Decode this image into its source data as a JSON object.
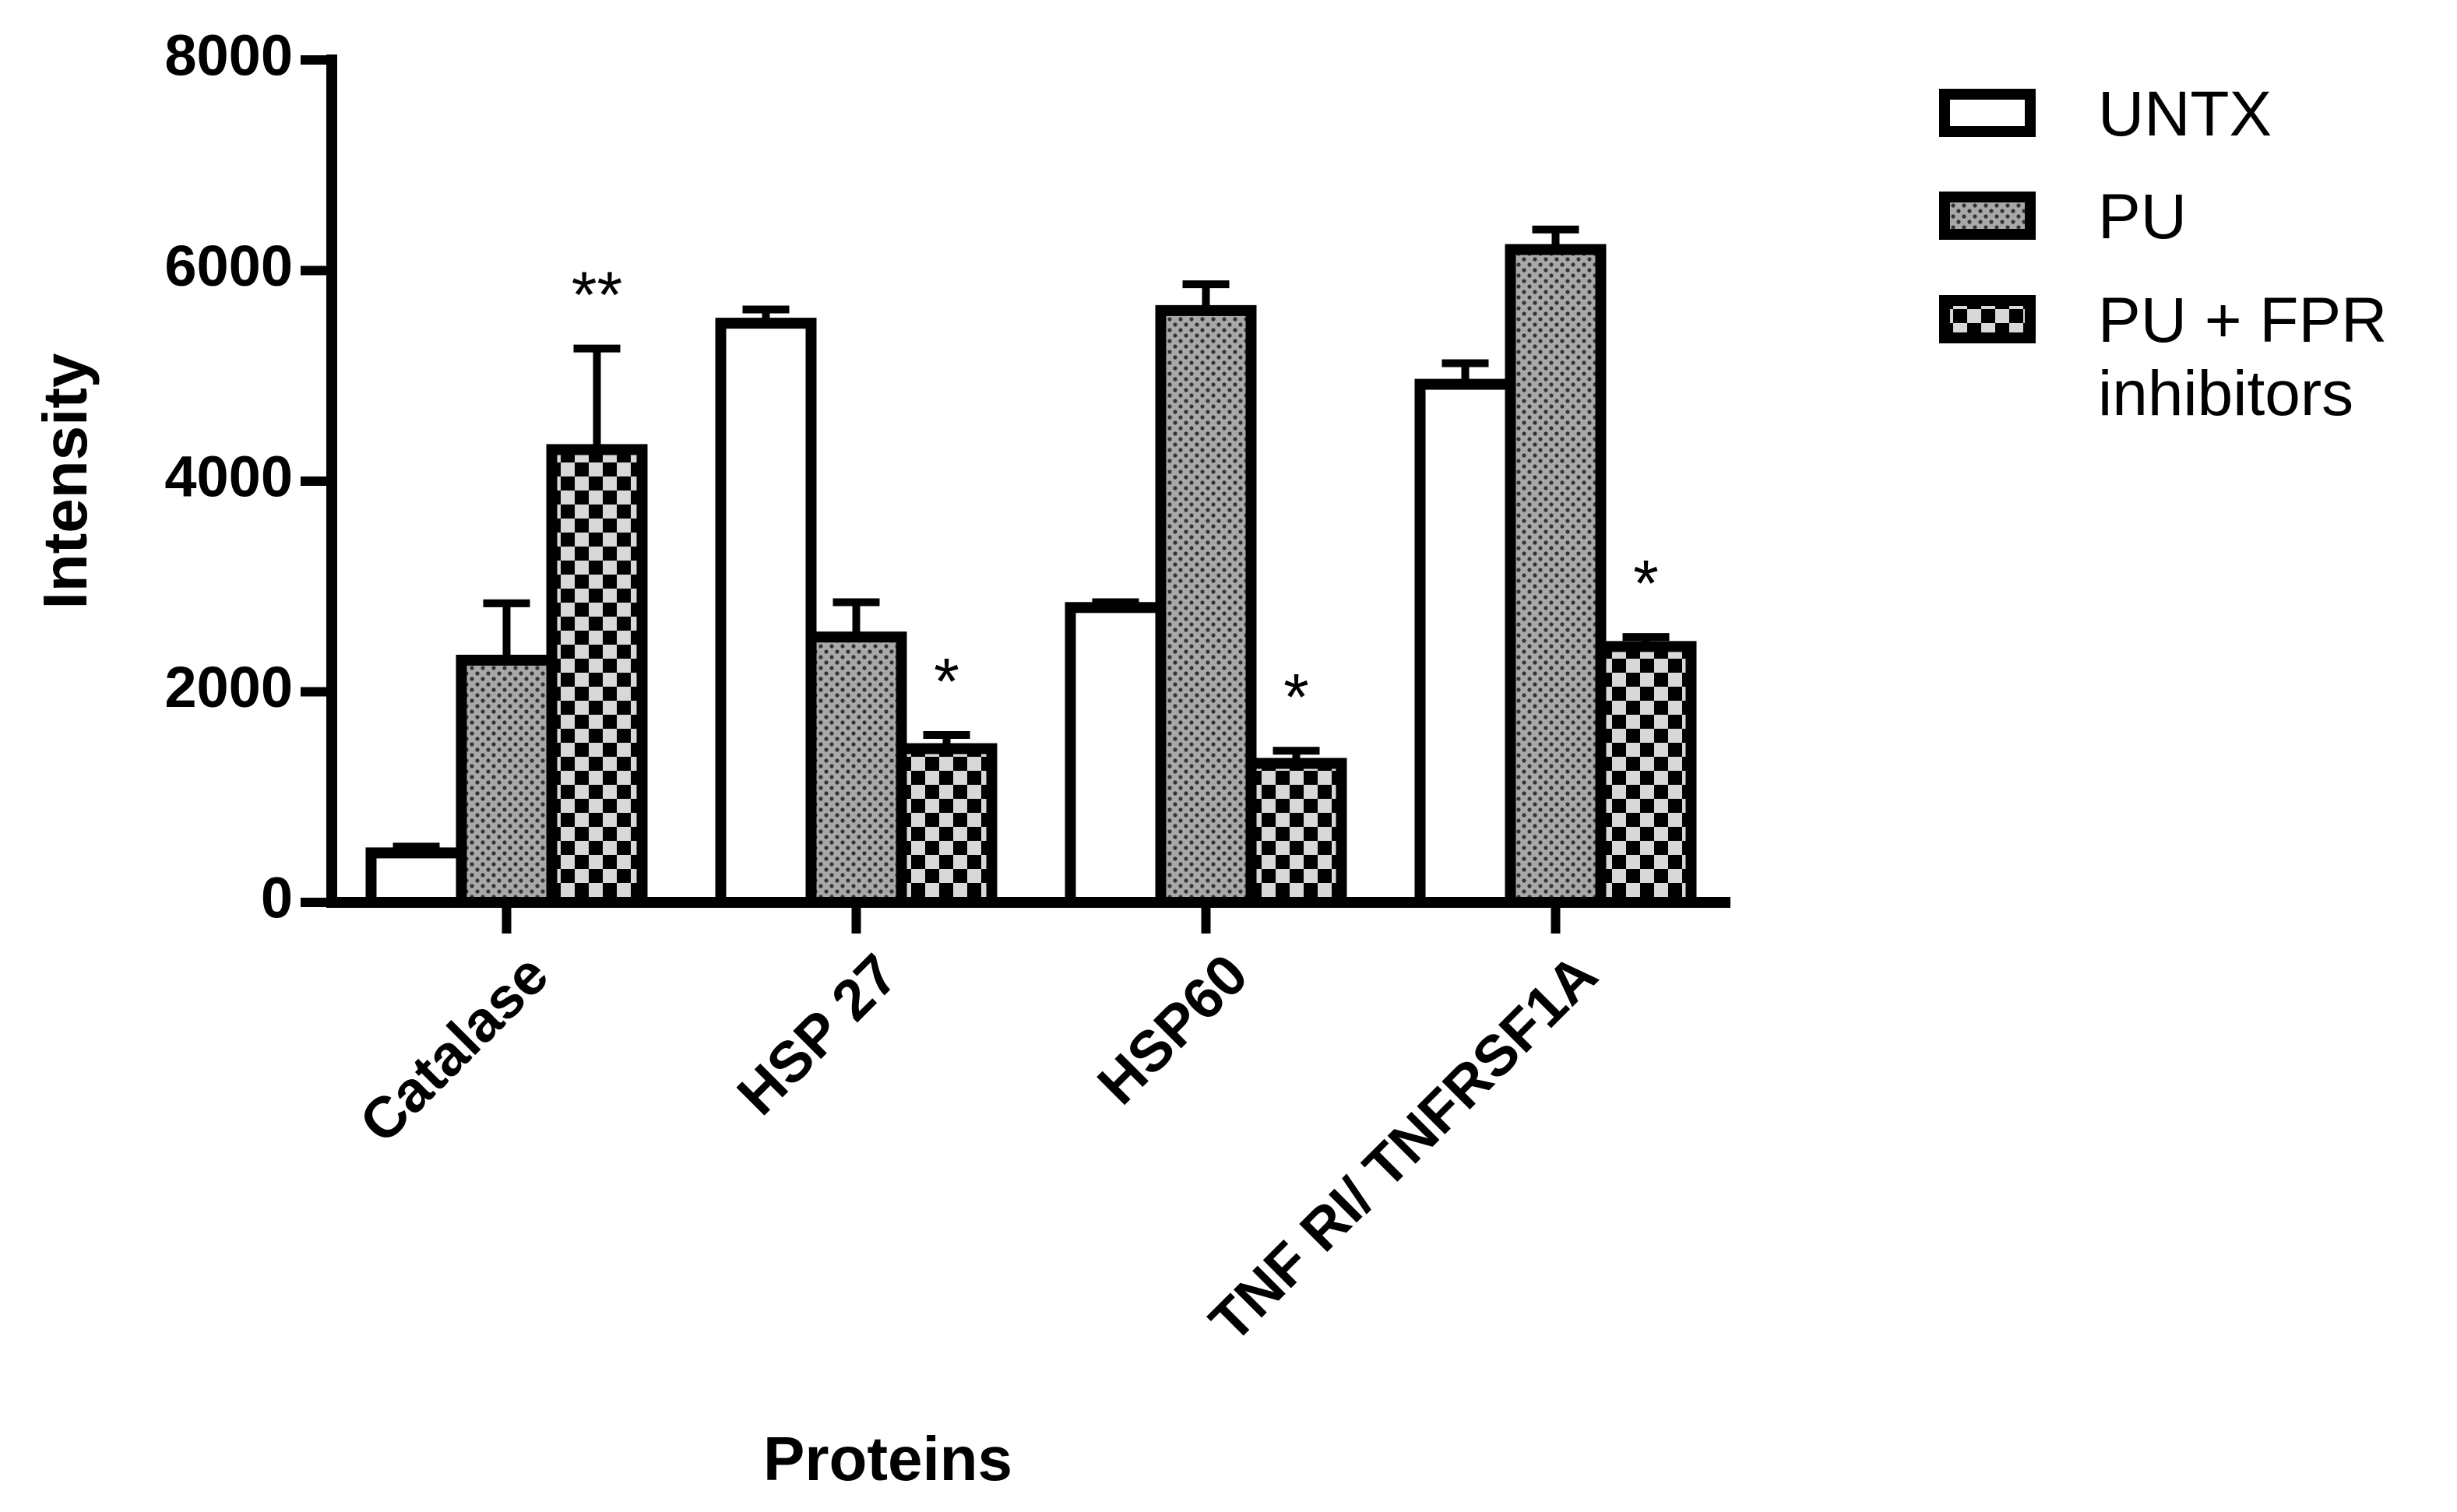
{
  "chart_data": {
    "type": "bar",
    "xlabel": "Proteins",
    "ylabel": "Intensity",
    "categories": [
      "Catalase",
      "HSP 27",
      "HSP60",
      "TNF RI/ TNFRSF1A"
    ],
    "series": [
      {
        "name": "UNTX",
        "color": "#ffffff",
        "pattern": "none",
        "values": [
          470,
          5500,
          2800,
          4920
        ],
        "errors": [
          60,
          130,
          50,
          200
        ]
      },
      {
        "name": "PU",
        "color": "#a8a8a8",
        "pattern": "dots",
        "values": [
          2300,
          2520,
          5620,
          6200
        ],
        "errors": [
          540,
          330,
          250,
          190
        ]
      },
      {
        "name": "PU + FPR inhibitors",
        "color": "#d8d8d8",
        "pattern": "checker",
        "values": [
          4300,
          1460,
          1320,
          2430
        ],
        "errors": [
          960,
          130,
          120,
          90
        ],
        "annotations": [
          "**",
          "*",
          "*",
          "*"
        ]
      }
    ],
    "ylim": [
      0,
      8000
    ],
    "yticks": [
      0,
      2000,
      4000,
      6000,
      8000
    ],
    "legend": "right"
  }
}
